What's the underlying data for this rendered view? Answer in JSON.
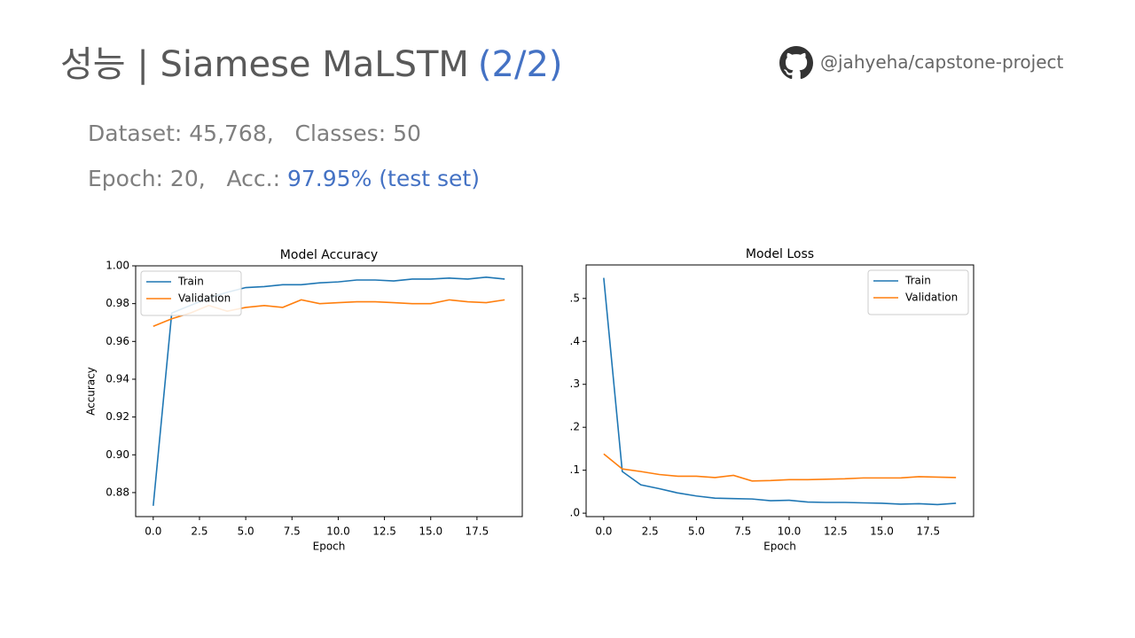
{
  "header": {
    "title": "성능 | Siamese MaLSTM",
    "title_part": "(2/2)",
    "repo": "@jahyeha/capstone-project"
  },
  "info": [
    {
      "text": "Dataset: 45,768,   Classes: 50"
    },
    {
      "text": "Epoch: 20,   Acc.: ",
      "highlight": "97.95% (test set)"
    }
  ],
  "chart_data": [
    {
      "type": "line",
      "title": "Model Accuracy",
      "x_label": "Epoch",
      "y_label": "Accuracy",
      "legend": "upper left",
      "x": [
        0,
        1,
        2,
        3,
        4,
        5,
        6,
        7,
        8,
        9,
        10,
        11,
        12,
        13,
        14,
        15,
        16,
        17,
        18,
        19
      ],
      "series": [
        {
          "name": "Train",
          "color": "#1f77b4",
          "values": [
            0.873,
            0.975,
            0.979,
            0.983,
            0.986,
            0.9885,
            0.989,
            0.99,
            0.99,
            0.991,
            0.9915,
            0.9925,
            0.9925,
            0.992,
            0.993,
            0.993,
            0.9935,
            0.993,
            0.994,
            0.993
          ]
        },
        {
          "name": "Validation",
          "color": "#ff7f0e",
          "values": [
            0.968,
            0.972,
            0.975,
            0.979,
            0.976,
            0.978,
            0.979,
            0.978,
            0.982,
            0.98,
            0.9805,
            0.981,
            0.981,
            0.9805,
            0.98,
            0.98,
            0.982,
            0.981,
            0.9805,
            0.982
          ]
        }
      ],
      "xlim": [
        -0.95,
        19.95
      ],
      "xticks": [
        {
          "value": 0,
          "label": "0.0"
        },
        2.5,
        {
          "value": 5,
          "label": "5.0"
        },
        7.5,
        {
          "value": 10,
          "label": "10.0"
        },
        12.5,
        {
          "value": 15,
          "label": "15.0"
        },
        17.5
      ],
      "ylim": [
        0.8673,
        1.0
      ],
      "yticks": [
        0.88,
        {
          "value": 0.9,
          "label": "0.90"
        },
        0.92,
        0.94,
        0.96,
        0.98,
        {
          "value": 1,
          "label": "1.00"
        }
      ]
    },
    {
      "type": "line",
      "title": "Model Loss",
      "x_label": "Epoch",
      "legend": "upper right",
      "x": [
        0,
        1,
        2,
        3,
        4,
        5,
        6,
        7,
        8,
        9,
        10,
        11,
        12,
        13,
        14,
        15,
        16,
        17,
        18,
        19
      ],
      "series": [
        {
          "name": "Train",
          "color": "#1f77b4",
          "values": [
            0.548,
            0.097,
            0.066,
            0.057,
            0.047,
            0.04,
            0.035,
            0.034,
            0.033,
            0.029,
            0.03,
            0.026,
            0.025,
            0.025,
            0.024,
            0.023,
            0.021,
            0.022,
            0.02,
            0.023
          ]
        },
        {
          "name": "Validation",
          "color": "#ff7f0e",
          "values": [
            0.138,
            0.103,
            0.097,
            0.09,
            0.086,
            0.086,
            0.083,
            0.088,
            0.075,
            0.076,
            0.078,
            0.078,
            0.079,
            0.08,
            0.082,
            0.082,
            0.082,
            0.085,
            0.084,
            0.083
          ]
        }
      ],
      "xlim": [
        -0.95,
        19.95
      ],
      "xticks": [
        {
          "value": 0,
          "label": "0.0"
        },
        2.5,
        {
          "value": 5,
          "label": "5.0"
        },
        7.5,
        {
          "value": 10,
          "label": "10.0"
        },
        12.5,
        {
          "value": 15,
          "label": "15.0"
        },
        17.5
      ],
      "ylim": [
        -0.008,
        0.578
      ],
      "yticks": [
        {
          "value": 0,
          "label": ".0"
        },
        {
          "value": 0.1,
          "label": ".1"
        },
        {
          "value": 0.2,
          "label": ".2"
        },
        {
          "value": 0.3,
          "label": ".3"
        },
        {
          "value": 0.4,
          "label": ".4"
        },
        {
          "value": 0.5,
          "label": ".5"
        }
      ]
    }
  ]
}
